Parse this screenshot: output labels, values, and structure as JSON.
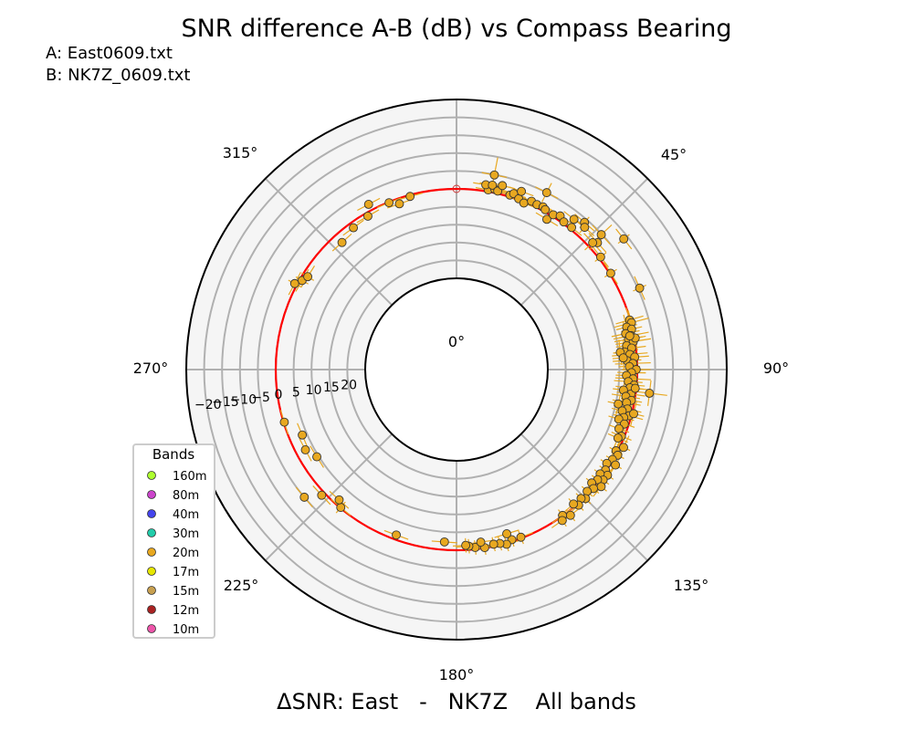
{
  "chart_data": {
    "type": "scatter",
    "subtype": "polar",
    "title": "SNR difference A-B (dB) vs Compass Bearing",
    "file_a": "A: East0609.txt",
    "file_b": "B: NK7Z_0609.txt",
    "xlabel": "ΔSNR: East   -   NK7Z    All bands",
    "angle_ticks": [
      "0°",
      "45°",
      "90°",
      "135°",
      "180°",
      "225°",
      "270°",
      "315°"
    ],
    "radial_ticks": [
      20,
      15,
      10,
      5,
      0,
      -5,
      -10,
      -15,
      -20
    ],
    "radial_tick_labels": [
      "20",
      "15",
      "10",
      "5",
      "0",
      "−5",
      "−10",
      "−15",
      "−20"
    ],
    "rlim": [
      -25,
      25
    ],
    "zero_ring": 0,
    "grid": true,
    "legend": {
      "title": "Bands",
      "position": "lower-left",
      "items": [
        {
          "label": "160m",
          "color": "#adff2f"
        },
        {
          "label": "80m",
          "color": "#cc44cc"
        },
        {
          "label": "40m",
          "color": "#4444ee"
        },
        {
          "label": "30m",
          "color": "#22ccaa"
        },
        {
          "label": "20m",
          "color": "#e8a820"
        },
        {
          "label": "17m",
          "color": "#e6e600"
        },
        {
          "label": "15m",
          "color": "#c8a050"
        },
        {
          "label": "12m",
          "color": "#aa2222"
        },
        {
          "label": "10m",
          "color": "#ee55aa"
        }
      ]
    },
    "series": [
      {
        "name": "20m",
        "color": "#e8a820",
        "points": [
          {
            "bearing": 0,
            "snr": 0,
            "err": 0,
            "open": true
          },
          {
            "bearing": 10,
            "snr": -0.5,
            "err": 1
          },
          {
            "bearing": 12,
            "snr": -1,
            "err": 1
          },
          {
            "bearing": 9,
            "snr": -1.8,
            "err": 1
          },
          {
            "bearing": 11,
            "snr": -2,
            "err": 1
          },
          {
            "bearing": 13,
            "snr": -0.7,
            "err": 1
          },
          {
            "bearing": 14,
            "snr": -2.5,
            "err": 1
          },
          {
            "bearing": 17,
            "snr": -0.5,
            "err": 1
          },
          {
            "bearing": 18,
            "snr": -1.2,
            "err": 1
          },
          {
            "bearing": 20,
            "snr": -0.3,
            "err": 1
          },
          {
            "bearing": 22,
            "snr": 0.3,
            "err": 1
          },
          {
            "bearing": 20,
            "snr": -2.5,
            "err": 1
          },
          {
            "bearing": 24,
            "snr": -1,
            "err": 1
          },
          {
            "bearing": 26,
            "snr": -0.8,
            "err": 1
          },
          {
            "bearing": 28,
            "snr": -1,
            "err": 1
          },
          {
            "bearing": 29,
            "snr": -0.6,
            "err": 1
          },
          {
            "bearing": 31,
            "snr": 1.5,
            "err": 1
          },
          {
            "bearing": 32,
            "snr": -0.5,
            "err": 1
          },
          {
            "bearing": 34,
            "snr": -1.3,
            "err": 1
          },
          {
            "bearing": 36,
            "snr": -0.5,
            "err": 1
          },
          {
            "bearing": 38,
            "snr": -2.8,
            "err": 1
          },
          {
            "bearing": 39,
            "snr": -0.6,
            "err": 1
          },
          {
            "bearing": 41,
            "snr": -4,
            "err": 2
          },
          {
            "bearing": 11,
            "snr": -4.9,
            "err": 5
          },
          {
            "bearing": 27,
            "snr": -5,
            "err": 3
          },
          {
            "bearing": 42,
            "snr": -3,
            "err": 2
          },
          {
            "bearing": 47,
            "snr": -4.8,
            "err": 4
          },
          {
            "bearing": 48,
            "snr": -2.5,
            "err": 3
          },
          {
            "bearing": 52,
            "snr": -0.6,
            "err": 2
          },
          {
            "bearing": 58,
            "snr": -0.3,
            "err": 2
          },
          {
            "bearing": 47,
            "snr": -1.5,
            "err": 3
          },
          {
            "bearing": 52,
            "snr": -8.8,
            "err": 2
          },
          {
            "bearing": 74,
            "snr": 0.2,
            "err": 4
          },
          {
            "bearing": 75,
            "snr": -0.1,
            "err": 5
          },
          {
            "bearing": 76,
            "snr": 1.5,
            "err": 3
          },
          {
            "bearing": 77,
            "snr": 0.3,
            "err": 3
          },
          {
            "bearing": 78,
            "snr": 2.2,
            "err": 4
          },
          {
            "bearing": 79,
            "snr": 0.8,
            "err": 5
          },
          {
            "bearing": 80,
            "snr": 1.7,
            "err": 4
          },
          {
            "bearing": 81,
            "snr": 0.5,
            "err": 5
          },
          {
            "bearing": 82,
            "snr": 2.5,
            "err": 3
          },
          {
            "bearing": 83,
            "snr": 1.2,
            "err": 4
          },
          {
            "bearing": 84,
            "snr": 3.3,
            "err": 3
          },
          {
            "bearing": 85,
            "snr": 1.9,
            "err": 5
          },
          {
            "bearing": 86,
            "snr": 0.6,
            "err": 4
          },
          {
            "bearing": 87,
            "snr": 2.8,
            "err": 4
          },
          {
            "bearing": 88,
            "snr": 1.2,
            "err": 5
          },
          {
            "bearing": 89,
            "snr": 2.2,
            "err": 3
          },
          {
            "bearing": 90,
            "snr": 0.3,
            "err": 4
          },
          {
            "bearing": 91,
            "snr": 1.6,
            "err": 4
          },
          {
            "bearing": 92,
            "snr": 3,
            "err": 3
          },
          {
            "bearing": 93,
            "snr": 1.1,
            "err": 5
          },
          {
            "bearing": 94,
            "snr": 2.4,
            "err": 4
          },
          {
            "bearing": 95,
            "snr": 0.7,
            "err": 3
          },
          {
            "bearing": 96,
            "snr": 1.8,
            "err": 4
          },
          {
            "bearing": 97,
            "snr": 3.5,
            "err": 3
          },
          {
            "bearing": 98,
            "snr": 1.3,
            "err": 4
          },
          {
            "bearing": 99,
            "snr": 2.6,
            "err": 4
          },
          {
            "bearing": 100,
            "snr": 0.9,
            "err": 3
          },
          {
            "bearing": 101,
            "snr": 2.1,
            "err": 4
          },
          {
            "bearing": 102,
            "snr": 4.3,
            "err": 3
          },
          {
            "bearing": 103,
            "snr": 1.5,
            "err": 4
          },
          {
            "bearing": 104,
            "snr": 2.8,
            "err": 3
          },
          {
            "bearing": 105,
            "snr": 0.6,
            "err": 4
          },
          {
            "bearing": 106,
            "snr": 1.9,
            "err": 3
          },
          {
            "bearing": 107,
            "snr": 3.1,
            "err": 3
          },
          {
            "bearing": 108,
            "snr": 1.2,
            "err": 3
          },
          {
            "bearing": 110,
            "snr": 2.2,
            "err": 3
          },
          {
            "bearing": 112,
            "snr": 0.8,
            "err": 3
          },
          {
            "bearing": 113,
            "snr": 1.5,
            "err": 3
          },
          {
            "bearing": 84,
            "snr": 4.5,
            "err": 2
          },
          {
            "bearing": 86,
            "snr": 3.8,
            "err": 3
          },
          {
            "bearing": 80,
            "snr": -0.2,
            "err": 3
          },
          {
            "bearing": 79,
            "snr": 1.2,
            "err": 3
          },
          {
            "bearing": 97,
            "snr": -3.8,
            "err": 5
          },
          {
            "bearing": 66,
            "snr": -5.5,
            "err": 2
          },
          {
            "bearing": 96,
            "snr": 0.3,
            "err": 4
          },
          {
            "bearing": 104,
            "snr": -0.5,
            "err": 3
          },
          {
            "bearing": 115,
            "snr": -1,
            "err": 2
          },
          {
            "bearing": 117,
            "snr": 0.5,
            "err": 2
          },
          {
            "bearing": 118,
            "snr": -0.5,
            "err": 2
          },
          {
            "bearing": 120,
            "snr": 0.2,
            "err": 2
          },
          {
            "bearing": 121,
            "snr": -1.3,
            "err": 2
          },
          {
            "bearing": 122,
            "snr": 1,
            "err": 2
          },
          {
            "bearing": 124,
            "snr": 0.3,
            "err": 2
          },
          {
            "bearing": 125,
            "snr": -1,
            "err": 2
          },
          {
            "bearing": 126,
            "snr": 0.9,
            "err": 2
          },
          {
            "bearing": 127,
            "snr": -0.8,
            "err": 2
          },
          {
            "bearing": 128,
            "snr": 0.5,
            "err": 2
          },
          {
            "bearing": 129,
            "snr": -1.5,
            "err": 2
          },
          {
            "bearing": 130,
            "snr": 1.2,
            "err": 2
          },
          {
            "bearing": 131,
            "snr": -0.2,
            "err": 2
          },
          {
            "bearing": 133,
            "snr": 0.6,
            "err": 2
          },
          {
            "bearing": 135,
            "snr": -0.5,
            "err": 2
          },
          {
            "bearing": 136,
            "snr": 0.4,
            "err": 2
          },
          {
            "bearing": 138,
            "snr": -0.5,
            "err": 2
          },
          {
            "bearing": 139,
            "snr": 0.7,
            "err": 2
          },
          {
            "bearing": 142,
            "snr": -1.2,
            "err": 2
          },
          {
            "bearing": 144,
            "snr": 0.1,
            "err": 2
          },
          {
            "bearing": 145,
            "snr": -1,
            "err": 2
          },
          {
            "bearing": 159,
            "snr": 0.3,
            "err": 2
          },
          {
            "bearing": 162,
            "snr": 0.5,
            "err": 2
          },
          {
            "bearing": 164,
            "snr": -0.3,
            "err": 2
          },
          {
            "bearing": 166,
            "snr": 0.4,
            "err": 2
          },
          {
            "bearing": 168,
            "snr": 0.6,
            "err": 2
          },
          {
            "bearing": 171,
            "snr": 0.1,
            "err": 2
          },
          {
            "bearing": 174,
            "snr": 0.5,
            "err": 2
          },
          {
            "bearing": 176,
            "snr": 1,
            "err": 2
          },
          {
            "bearing": 177,
            "snr": 1.3,
            "err": 2
          },
          {
            "bearing": 172,
            "snr": 1.8,
            "err": 1
          },
          {
            "bearing": 184,
            "snr": 2.2,
            "err": 1
          },
          {
            "bearing": 200,
            "snr": 1.3,
            "err": 1
          },
          {
            "bearing": 163,
            "snr": 2.5,
            "err": 1
          },
          {
            "bearing": 220,
            "snr": 0.2,
            "err": 2
          },
          {
            "bearing": 222,
            "snr": 1.5,
            "err": 1
          },
          {
            "bearing": 230,
            "snr": -5,
            "err": 1
          },
          {
            "bearing": 227,
            "snr": -1,
            "err": 1
          },
          {
            "bearing": 238,
            "snr": 4.5,
            "err": 1
          },
          {
            "bearing": 242,
            "snr": 2.7,
            "err": 1
          },
          {
            "bearing": 247,
            "snr": 3.7,
            "err": 1
          },
          {
            "bearing": 253,
            "snr": 0.2,
            "err": 1
          },
          {
            "bearing": 300,
            "snr": 0.7,
            "err": 2
          },
          {
            "bearing": 302,
            "snr": 1.5,
            "err": 2
          },
          {
            "bearing": 298,
            "snr": -0.7,
            "err": 2
          },
          {
            "bearing": 318,
            "snr": 2.7,
            "err": 1
          },
          {
            "bearing": 324,
            "snr": 1.5,
            "err": 1
          },
          {
            "bearing": 330,
            "snr": 1,
            "err": 1
          },
          {
            "bearing": 332,
            "snr": -1.8,
            "err": 1
          },
          {
            "bearing": 338,
            "snr": 0.2,
            "err": 1
          },
          {
            "bearing": 341,
            "snr": 1.5,
            "err": 1
          },
          {
            "bearing": 345,
            "snr": 0.4,
            "err": 1
          }
        ]
      }
    ]
  }
}
